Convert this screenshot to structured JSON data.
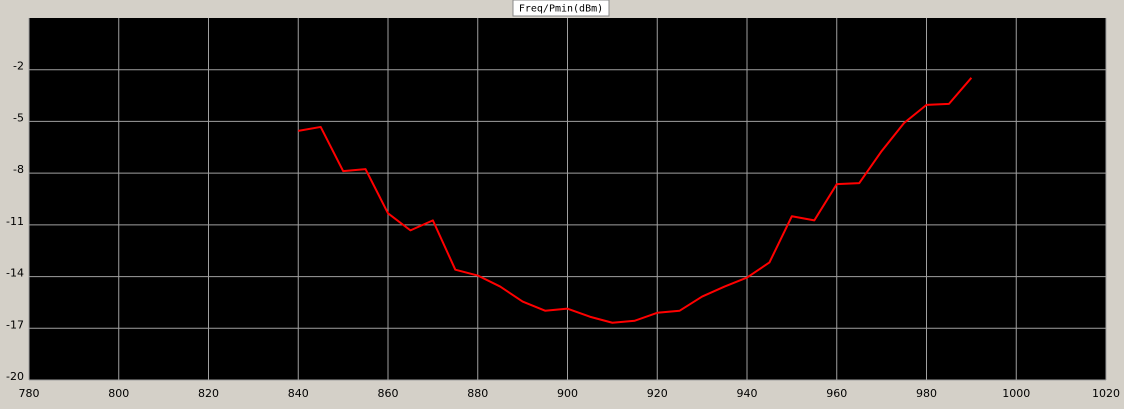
{
  "chart_data": {
    "type": "line",
    "title": "Freq/Pmin(dBm)",
    "x": [
      840,
      845,
      850,
      855,
      860,
      865,
      870,
      875,
      880,
      885,
      890,
      895,
      900,
      905,
      910,
      915,
      920,
      925,
      930,
      935,
      940,
      945,
      950,
      955,
      960,
      965,
      970,
      975,
      980,
      985,
      990
    ],
    "series": [
      {
        "name": "Pmin",
        "color": "#ff0000",
        "values": [
          -5.55,
          -5.32,
          -7.88,
          -7.77,
          -10.33,
          -11.32,
          -10.74,
          -13.6,
          -13.94,
          -14.58,
          -15.45,
          -15.98,
          -15.86,
          -16.33,
          -16.68,
          -16.56,
          -16.1,
          -15.98,
          -15.16,
          -14.58,
          -14.06,
          -13.18,
          -10.5,
          -10.74,
          -8.64,
          -8.58,
          -6.72,
          -5.09,
          -4.04,
          -3.98,
          -2.47
        ]
      }
    ],
    "xlim": [
      780,
      1020
    ],
    "xticks": [
      780,
      800,
      820,
      840,
      860,
      880,
      900,
      920,
      940,
      960,
      980,
      1000,
      1020
    ],
    "ylim": [
      -20,
      1
    ],
    "yticks": [
      -20,
      -17,
      -14,
      -11,
      -8,
      -5,
      -2
    ],
    "grid": true
  }
}
